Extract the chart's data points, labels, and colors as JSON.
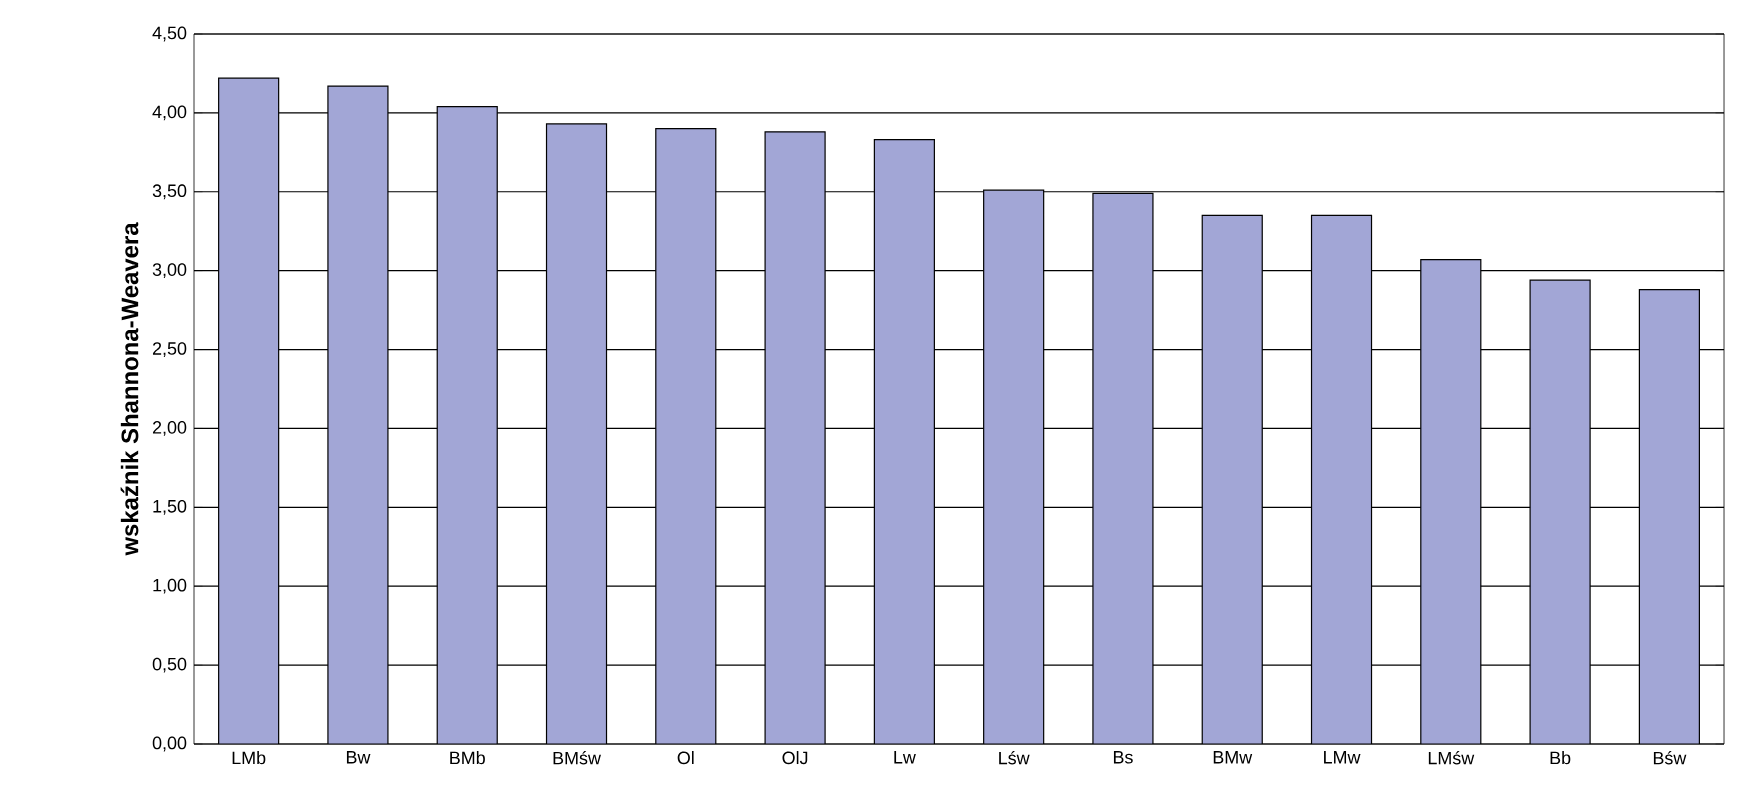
{
  "chart_data": {
    "type": "bar",
    "ylabel": "wskaźnik Shannona-Weavera",
    "categories": [
      "LMb",
      "Bw",
      "BMb",
      "BMśw",
      "Ol",
      "OlJ",
      "Lw",
      "Lśw",
      "Bs",
      "BMw",
      "LMw",
      "LMśw",
      "Bb",
      "Bśw"
    ],
    "values": [
      4.22,
      4.17,
      4.04,
      3.93,
      3.9,
      3.88,
      3.83,
      3.51,
      3.49,
      3.35,
      3.35,
      3.07,
      2.94,
      2.88
    ],
    "color": "#a2a6d6",
    "ylim": [
      0,
      4.5
    ],
    "yticks": [
      {
        "value": 0,
        "label": "0,00"
      },
      {
        "value": 0.5,
        "label": "0,50"
      },
      {
        "value": 1,
        "label": "1,00"
      },
      {
        "value": 1.5,
        "label": "1,50"
      },
      {
        "value": 2,
        "label": "2,00"
      },
      {
        "value": 2.5,
        "label": "2,50"
      },
      {
        "value": 3,
        "label": "3,00"
      },
      {
        "value": 3.5,
        "label": "3,50"
      },
      {
        "value": 4,
        "label": "4,00"
      },
      {
        "value": 4.5,
        "label": "4,50"
      }
    ],
    "grid": "y"
  }
}
